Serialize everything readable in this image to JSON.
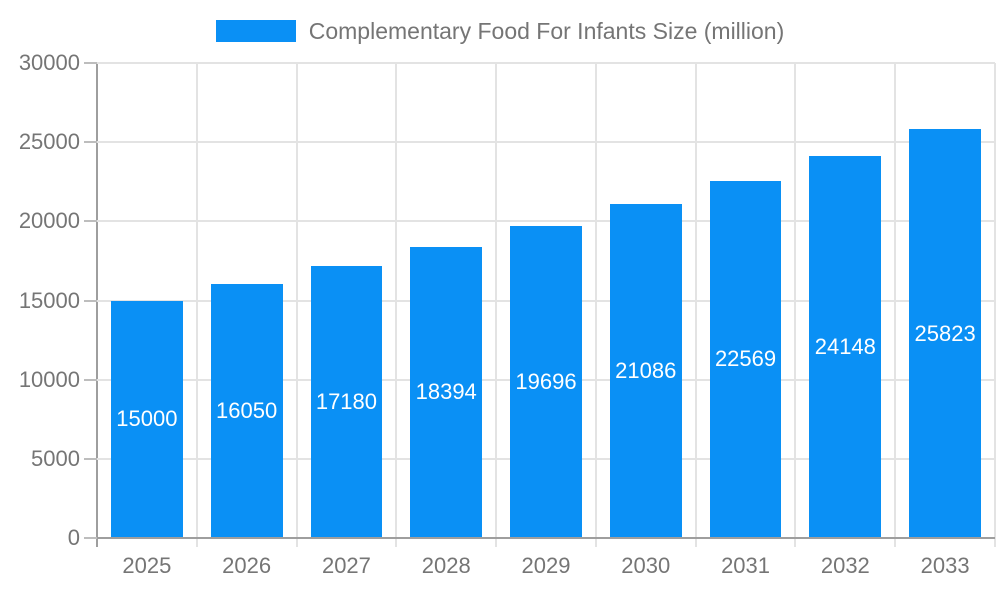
{
  "legend": {
    "series_label": "Complementary Food For Infants Size (million)"
  },
  "chart_data": {
    "type": "bar",
    "title": "Complementary Food For Infants Size (million)",
    "categories": [
      "2025",
      "2026",
      "2027",
      "2028",
      "2029",
      "2030",
      "2031",
      "2032",
      "2033"
    ],
    "values": [
      15000,
      16050,
      17180,
      18394,
      19696,
      21086,
      22569,
      24148,
      25823
    ],
    "bar_labels": [
      "15000",
      "16050",
      "17180",
      "18394",
      "19696",
      "21086",
      "22569",
      "24148",
      "25823"
    ],
    "xlabel": "",
    "ylabel": "",
    "ylim": [
      0,
      30000
    ],
    "y_ticks": [
      0,
      5000,
      10000,
      15000,
      20000,
      25000,
      30000
    ],
    "grid": true,
    "legend_position": "top-center",
    "colors": {
      "bar": "#0a90f5",
      "bar_label": "#ffffff",
      "axis_label": "#757575",
      "axis_line": "#9e9e9e",
      "gridline": "#e3e3e3",
      "background": "#ffffff"
    }
  }
}
